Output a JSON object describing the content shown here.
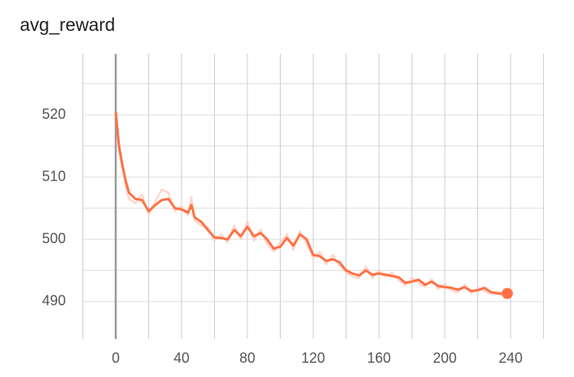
{
  "chart_data": {
    "type": "line",
    "title": "avg_reward",
    "x": [
      0,
      2,
      4,
      6,
      8,
      12,
      16,
      20,
      24,
      28,
      32,
      36,
      40,
      44,
      46,
      48,
      52,
      56,
      60,
      64,
      68,
      72,
      76,
      80,
      84,
      88,
      92,
      96,
      100,
      104,
      108,
      112,
      116,
      120,
      124,
      128,
      132,
      136,
      140,
      144,
      148,
      152,
      156,
      160,
      164,
      168,
      172,
      176,
      180,
      184,
      188,
      192,
      196,
      200,
      204,
      208,
      212,
      216,
      220,
      224,
      228,
      232,
      236,
      238
    ],
    "series": [
      {
        "color": "#ffccbc",
        "values": [
          520.5,
          514,
          511.5,
          508.5,
          506.5,
          505.8,
          507.2,
          504,
          506,
          508,
          507.5,
          504.5,
          505.3,
          503.8,
          506.8,
          503,
          502.2,
          502,
          499.8,
          500.8,
          499.5,
          502.2,
          500,
          502.8,
          499.8,
          501.6,
          499.3,
          498,
          499.5,
          500.8,
          498.3,
          501.3,
          499.2,
          497,
          498,
          496,
          497.5,
          495.8,
          494.7,
          494,
          493.8,
          495.6,
          493.8,
          495,
          494,
          494.6,
          493.4,
          492.6,
          493.8,
          493,
          492.4,
          493.6,
          492,
          492.8,
          491.8,
          491.5,
          492.7,
          491.3,
          492.2,
          491.7,
          491.2,
          491.6,
          490.9,
          491.3
        ]
      },
      {
        "color": "#ff7043",
        "values": [
          520.5,
          515,
          512,
          509.5,
          507.5,
          506.5,
          506.3,
          504.5,
          505.5,
          506.3,
          506.5,
          505,
          504.8,
          504.3,
          505.5,
          503.5,
          502.8,
          501.5,
          500.3,
          500.2,
          500,
          501.5,
          500.5,
          502,
          500.5,
          501,
          500,
          498.5,
          498.8,
          500.2,
          499,
          500.8,
          500,
          497.5,
          497.3,
          496.5,
          496.8,
          496.3,
          495,
          494.5,
          494.2,
          495,
          494.3,
          494.5,
          494.3,
          494.1,
          493.9,
          493,
          493.2,
          493.5,
          492.7,
          493.2,
          492.5,
          492.3,
          492.2,
          491.9,
          492.3,
          491.7,
          491.8,
          492.2,
          491.5,
          491.3,
          491.2,
          491.3
        ]
      }
    ],
    "xlim": [
      -20.7,
      260.2
    ],
    "ylim": [
      485,
      529.8
    ],
    "xticks": [
      0,
      40,
      80,
      120,
      160,
      200,
      240
    ],
    "xminor": [
      -20,
      20,
      60,
      100,
      140,
      180,
      220,
      260
    ],
    "yticks": [
      490,
      500,
      510,
      520
    ],
    "yminor": [
      495,
      505,
      515,
      525
    ],
    "grid": true
  }
}
